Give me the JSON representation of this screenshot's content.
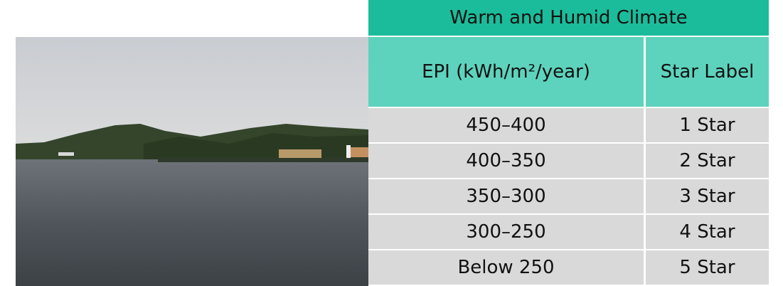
{
  "table": {
    "title": "Warm and Humid Climate",
    "header": [
      "EPI (kWh/m²/year)",
      "Star Label"
    ],
    "rows": [
      [
        "450–400",
        "1 Star"
      ],
      [
        "400–350",
        "2 Star"
      ],
      [
        "350–300",
        "3 Star"
      ],
      [
        "300–250",
        "4 Star"
      ],
      [
        "Below 250",
        "5 Star"
      ]
    ]
  }
}
